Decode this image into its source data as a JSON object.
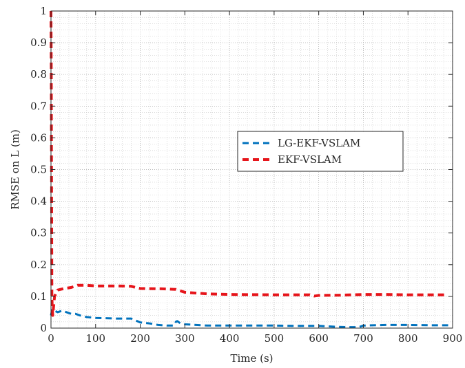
{
  "chart_data": {
    "type": "line",
    "title": "",
    "xlabel": "Time (s)",
    "ylabel": "RMSE on L (m)",
    "xlim": [
      0,
      900
    ],
    "ylim": [
      0,
      1
    ],
    "xticks": [
      0,
      100,
      200,
      300,
      400,
      500,
      600,
      700,
      800,
      900
    ],
    "yticks": [
      0,
      0.1,
      0.2,
      0.3,
      0.4,
      0.5,
      0.6,
      0.7,
      0.8,
      0.9,
      1
    ],
    "grid": true,
    "minor_grid": true,
    "legend_position": "center-right",
    "series": [
      {
        "name": "LG-EKF-VSLAM",
        "color": "#0072BD",
        "dash": "dashed",
        "x": [
          0,
          3,
          8,
          15,
          25,
          35,
          45,
          55,
          65,
          80,
          100,
          150,
          180,
          200,
          220,
          240,
          260,
          275,
          280,
          283,
          290,
          300,
          350,
          400,
          500,
          550,
          600,
          640,
          670,
          690,
          700,
          750,
          800,
          850,
          890
        ],
        "y": [
          0.04,
          0.06,
          0.055,
          0.05,
          0.055,
          0.05,
          0.045,
          0.045,
          0.04,
          0.035,
          0.032,
          0.03,
          0.03,
          0.018,
          0.015,
          0.01,
          0.008,
          0.008,
          0.02,
          0.022,
          0.015,
          0.012,
          0.008,
          0.008,
          0.008,
          0.007,
          0.007,
          0.004,
          0.003,
          0.003,
          0.008,
          0.01,
          0.01,
          0.009,
          0.009
        ]
      },
      {
        "name": "EKF-VSLAM",
        "color": "#E6151B",
        "dash": "dashed",
        "x": [
          0,
          0.7,
          1.4,
          2,
          3,
          4,
          8,
          15,
          30,
          45,
          60,
          80,
          100,
          150,
          180,
          190,
          200,
          250,
          280,
          300,
          350,
          400,
          500,
          550,
          580,
          590,
          600,
          650,
          700,
          750,
          800,
          850,
          890
        ],
        "y": [
          1,
          0.8,
          0.4,
          0.1,
          0.06,
          0.04,
          0.1,
          0.12,
          0.125,
          0.128,
          0.135,
          0.135,
          0.133,
          0.133,
          0.132,
          0.128,
          0.125,
          0.124,
          0.122,
          0.113,
          0.108,
          0.106,
          0.105,
          0.105,
          0.105,
          0.101,
          0.103,
          0.104,
          0.106,
          0.106,
          0.105,
          0.105,
          0.105
        ]
      }
    ]
  }
}
